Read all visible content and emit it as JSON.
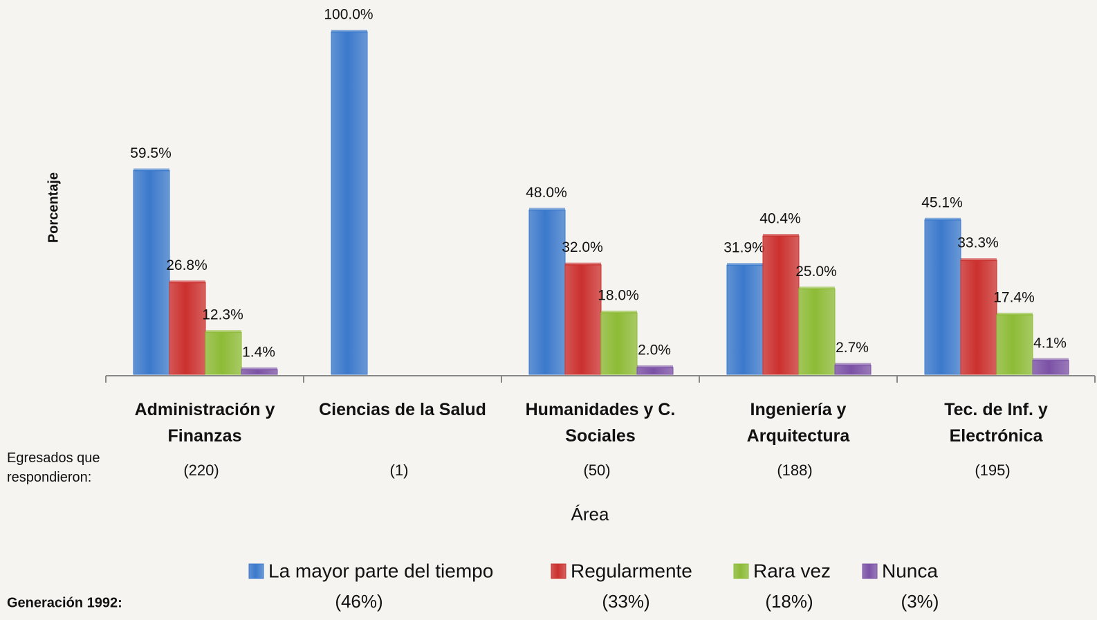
{
  "chart_data": {
    "type": "bar",
    "ylabel": "Porcentaje",
    "xlabel": "Área",
    "ylim": [
      0,
      100
    ],
    "categories": [
      "Administración y Finanzas",
      "Ciencias de la Salud",
      "Humanidades y C. Sociales",
      "Ingeniería y Arquitectura",
      "Tec. de Inf. y Electrónica"
    ],
    "respondents": {
      "label": "Egresados que respondieron:",
      "values": [
        "(220)",
        "(1)",
        "(50)",
        "(188)",
        "(195)"
      ]
    },
    "generation": "Generación 1992:",
    "series": [
      {
        "name": "La mayor parte del tiempo",
        "color": "#3b79cc",
        "share": "(46%)",
        "values": [
          59.5,
          100,
          48,
          31.9,
          45.1
        ],
        "value_labels": [
          "59.5%",
          "100.0%",
          "48.0%",
          "31.9%",
          "45.1%"
        ]
      },
      {
        "name": "Regularmente",
        "color": "#cb302e",
        "share": "(33%)",
        "values": [
          26.8,
          null,
          32,
          40.4,
          33.3
        ],
        "value_labels": [
          "26.8%",
          null,
          "32.0%",
          "40.4%",
          "33.3%"
        ]
      },
      {
        "name": "Rara vez",
        "color": "#8dbb36",
        "share": "(18%)",
        "values": [
          12.3,
          null,
          18,
          25,
          17.4
        ],
        "value_labels": [
          "12.3%",
          null,
          "18.0%",
          "25.0%",
          "17.4%"
        ]
      },
      {
        "name": "Nunca",
        "color": "#7b51a6",
        "share": "(3%)",
        "values": [
          1.4,
          null,
          2,
          2.7,
          4.1
        ],
        "value_labels": [
          "1.4%",
          null,
          "2.0%",
          "2.7%",
          "4.1%"
        ]
      }
    ]
  }
}
